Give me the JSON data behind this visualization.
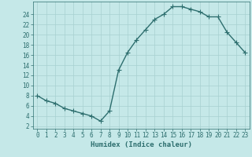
{
  "x": [
    0,
    1,
    2,
    3,
    4,
    5,
    6,
    7,
    8,
    9,
    10,
    11,
    12,
    13,
    14,
    15,
    16,
    17,
    18,
    19,
    20,
    21,
    22,
    23
  ],
  "y": [
    8,
    7,
    6.5,
    5.5,
    5,
    4.5,
    4,
    3,
    5,
    13,
    16.5,
    19,
    21,
    23,
    24,
    25.5,
    25.5,
    25,
    24.5,
    23.5,
    23.5,
    20.5,
    18.5,
    16.5
  ],
  "line_color": "#2d6e6e",
  "marker": "+",
  "marker_size": 4,
  "marker_lw": 0.8,
  "bg_color": "#c5e8e8",
  "grid_color": "#a8d0d0",
  "xlabel": "Humidex (Indice chaleur)",
  "xlim": [
    -0.5,
    23.5
  ],
  "ylim": [
    1.5,
    26.5
  ],
  "yticks": [
    2,
    4,
    6,
    8,
    10,
    12,
    14,
    16,
    18,
    20,
    22,
    24
  ],
  "xticks": [
    0,
    1,
    2,
    3,
    4,
    5,
    6,
    7,
    8,
    9,
    10,
    11,
    12,
    13,
    14,
    15,
    16,
    17,
    18,
    19,
    20,
    21,
    22,
    23
  ],
  "tick_color": "#2d6e6e",
  "tick_fontsize": 5.5,
  "label_fontsize": 6.5,
  "line_width": 1.0
}
